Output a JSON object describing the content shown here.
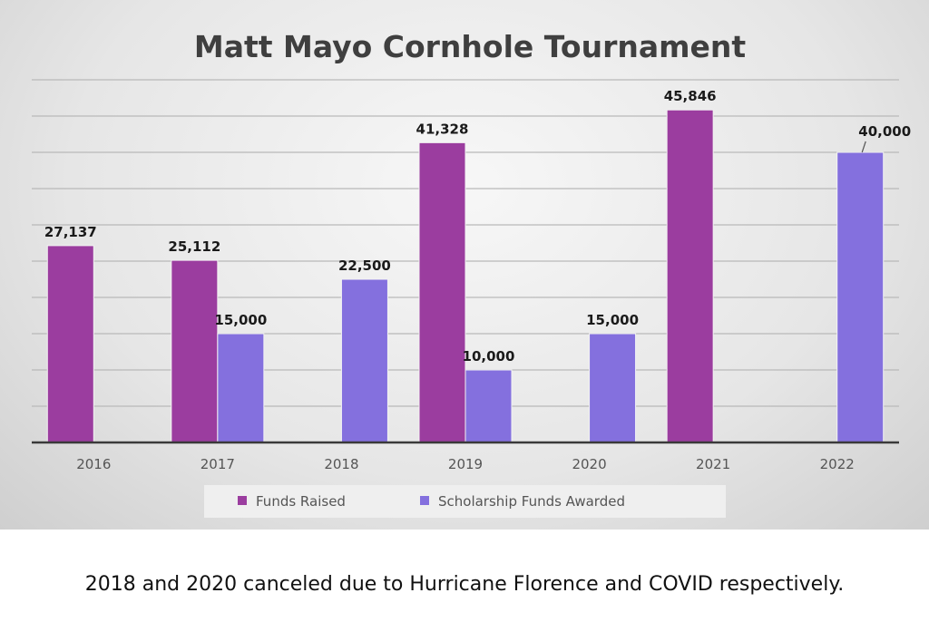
{
  "chart_data": {
    "type": "bar",
    "title": "Matt Mayo Cornhole Tournament",
    "categories": [
      "2016",
      "2017",
      "2018",
      "2019",
      "2020",
      "2021",
      "2022"
    ],
    "series": [
      {
        "name": "Funds Raised",
        "color": "#9b3d9f",
        "values": [
          27137,
          25112,
          null,
          41328,
          null,
          45846,
          null
        ]
      },
      {
        "name": "Scholarship Funds Awarded",
        "color": "#8470de",
        "values": [
          null,
          15000,
          22500,
          10000,
          15000,
          null,
          40000
        ]
      }
    ],
    "data_labels": {
      "Funds Raised": [
        "27,137",
        "25,112",
        "",
        "41,328",
        "",
        "45,846",
        ""
      ],
      "Scholarship Funds Awarded": [
        "",
        "15,000",
        "22,500",
        "10,000",
        "15,000",
        "",
        "40,000"
      ]
    },
    "xlabel": "",
    "ylabel": "",
    "ylim": [
      0,
      50000
    ],
    "grid": true,
    "legend": "bottom"
  },
  "caption": "2018 and 2020 canceled due to Hurricane Florence and COVID respectively."
}
